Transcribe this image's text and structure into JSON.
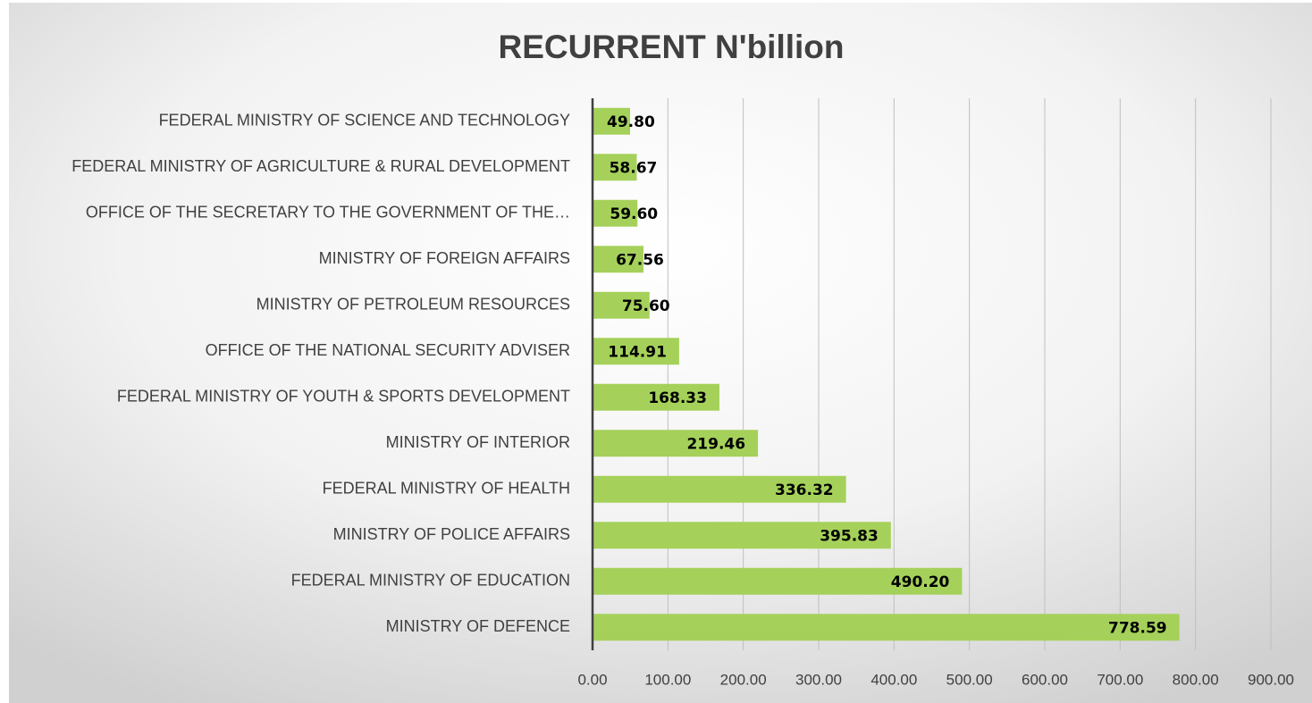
{
  "chart_data": {
    "type": "barh",
    "title": "RECURRENT N'billion",
    "categories": [
      "FEDERAL MINISTRY OF SCIENCE AND TECHNOLOGY",
      "FEDERAL MINISTRY OF AGRICULTURE & RURAL DEVELOPMENT",
      "OFFICE OF THE SECRETARY TO THE GOVERNMENT OF THE…",
      "MINISTRY OF FOREIGN AFFAIRS",
      "MINISTRY OF PETROLEUM RESOURCES",
      "OFFICE OF THE NATIONAL SECURITY ADVISER",
      "FEDERAL MINISTRY OF YOUTH & SPORTS DEVELOPMENT",
      "MINISTRY OF INTERIOR",
      "FEDERAL MINISTRY OF HEALTH",
      "MINISTRY OF POLICE AFFAIRS",
      "FEDERAL MINISTRY OF EDUCATION",
      "MINISTRY OF DEFENCE"
    ],
    "values": [
      49.8,
      58.67,
      59.6,
      67.56,
      75.6,
      114.91,
      168.33,
      219.46,
      336.32,
      395.83,
      490.2,
      778.59
    ],
    "value_labels": [
      "49.80",
      "58.67",
      "59.60",
      "67.56",
      "75.60",
      "114.91",
      "168.33",
      "219.46",
      "336.32",
      "395.83",
      "490.20",
      "778.59"
    ],
    "color": "#a5d15a",
    "xlim": [
      0,
      900
    ],
    "xticks": [
      {
        "value": 0,
        "label": "0.00"
      },
      {
        "value": 100,
        "label": "100.00"
      },
      {
        "value": 200,
        "label": "200.00"
      },
      {
        "value": 300,
        "label": "300.00"
      },
      {
        "value": 400,
        "label": "400.00"
      },
      {
        "value": 500,
        "label": "500.00"
      },
      {
        "value": 600,
        "label": "600.00"
      },
      {
        "value": 700,
        "label": "700.00"
      },
      {
        "value": 800,
        "label": "800.00"
      },
      {
        "value": 900,
        "label": "900.00"
      }
    ],
    "grid": true
  }
}
